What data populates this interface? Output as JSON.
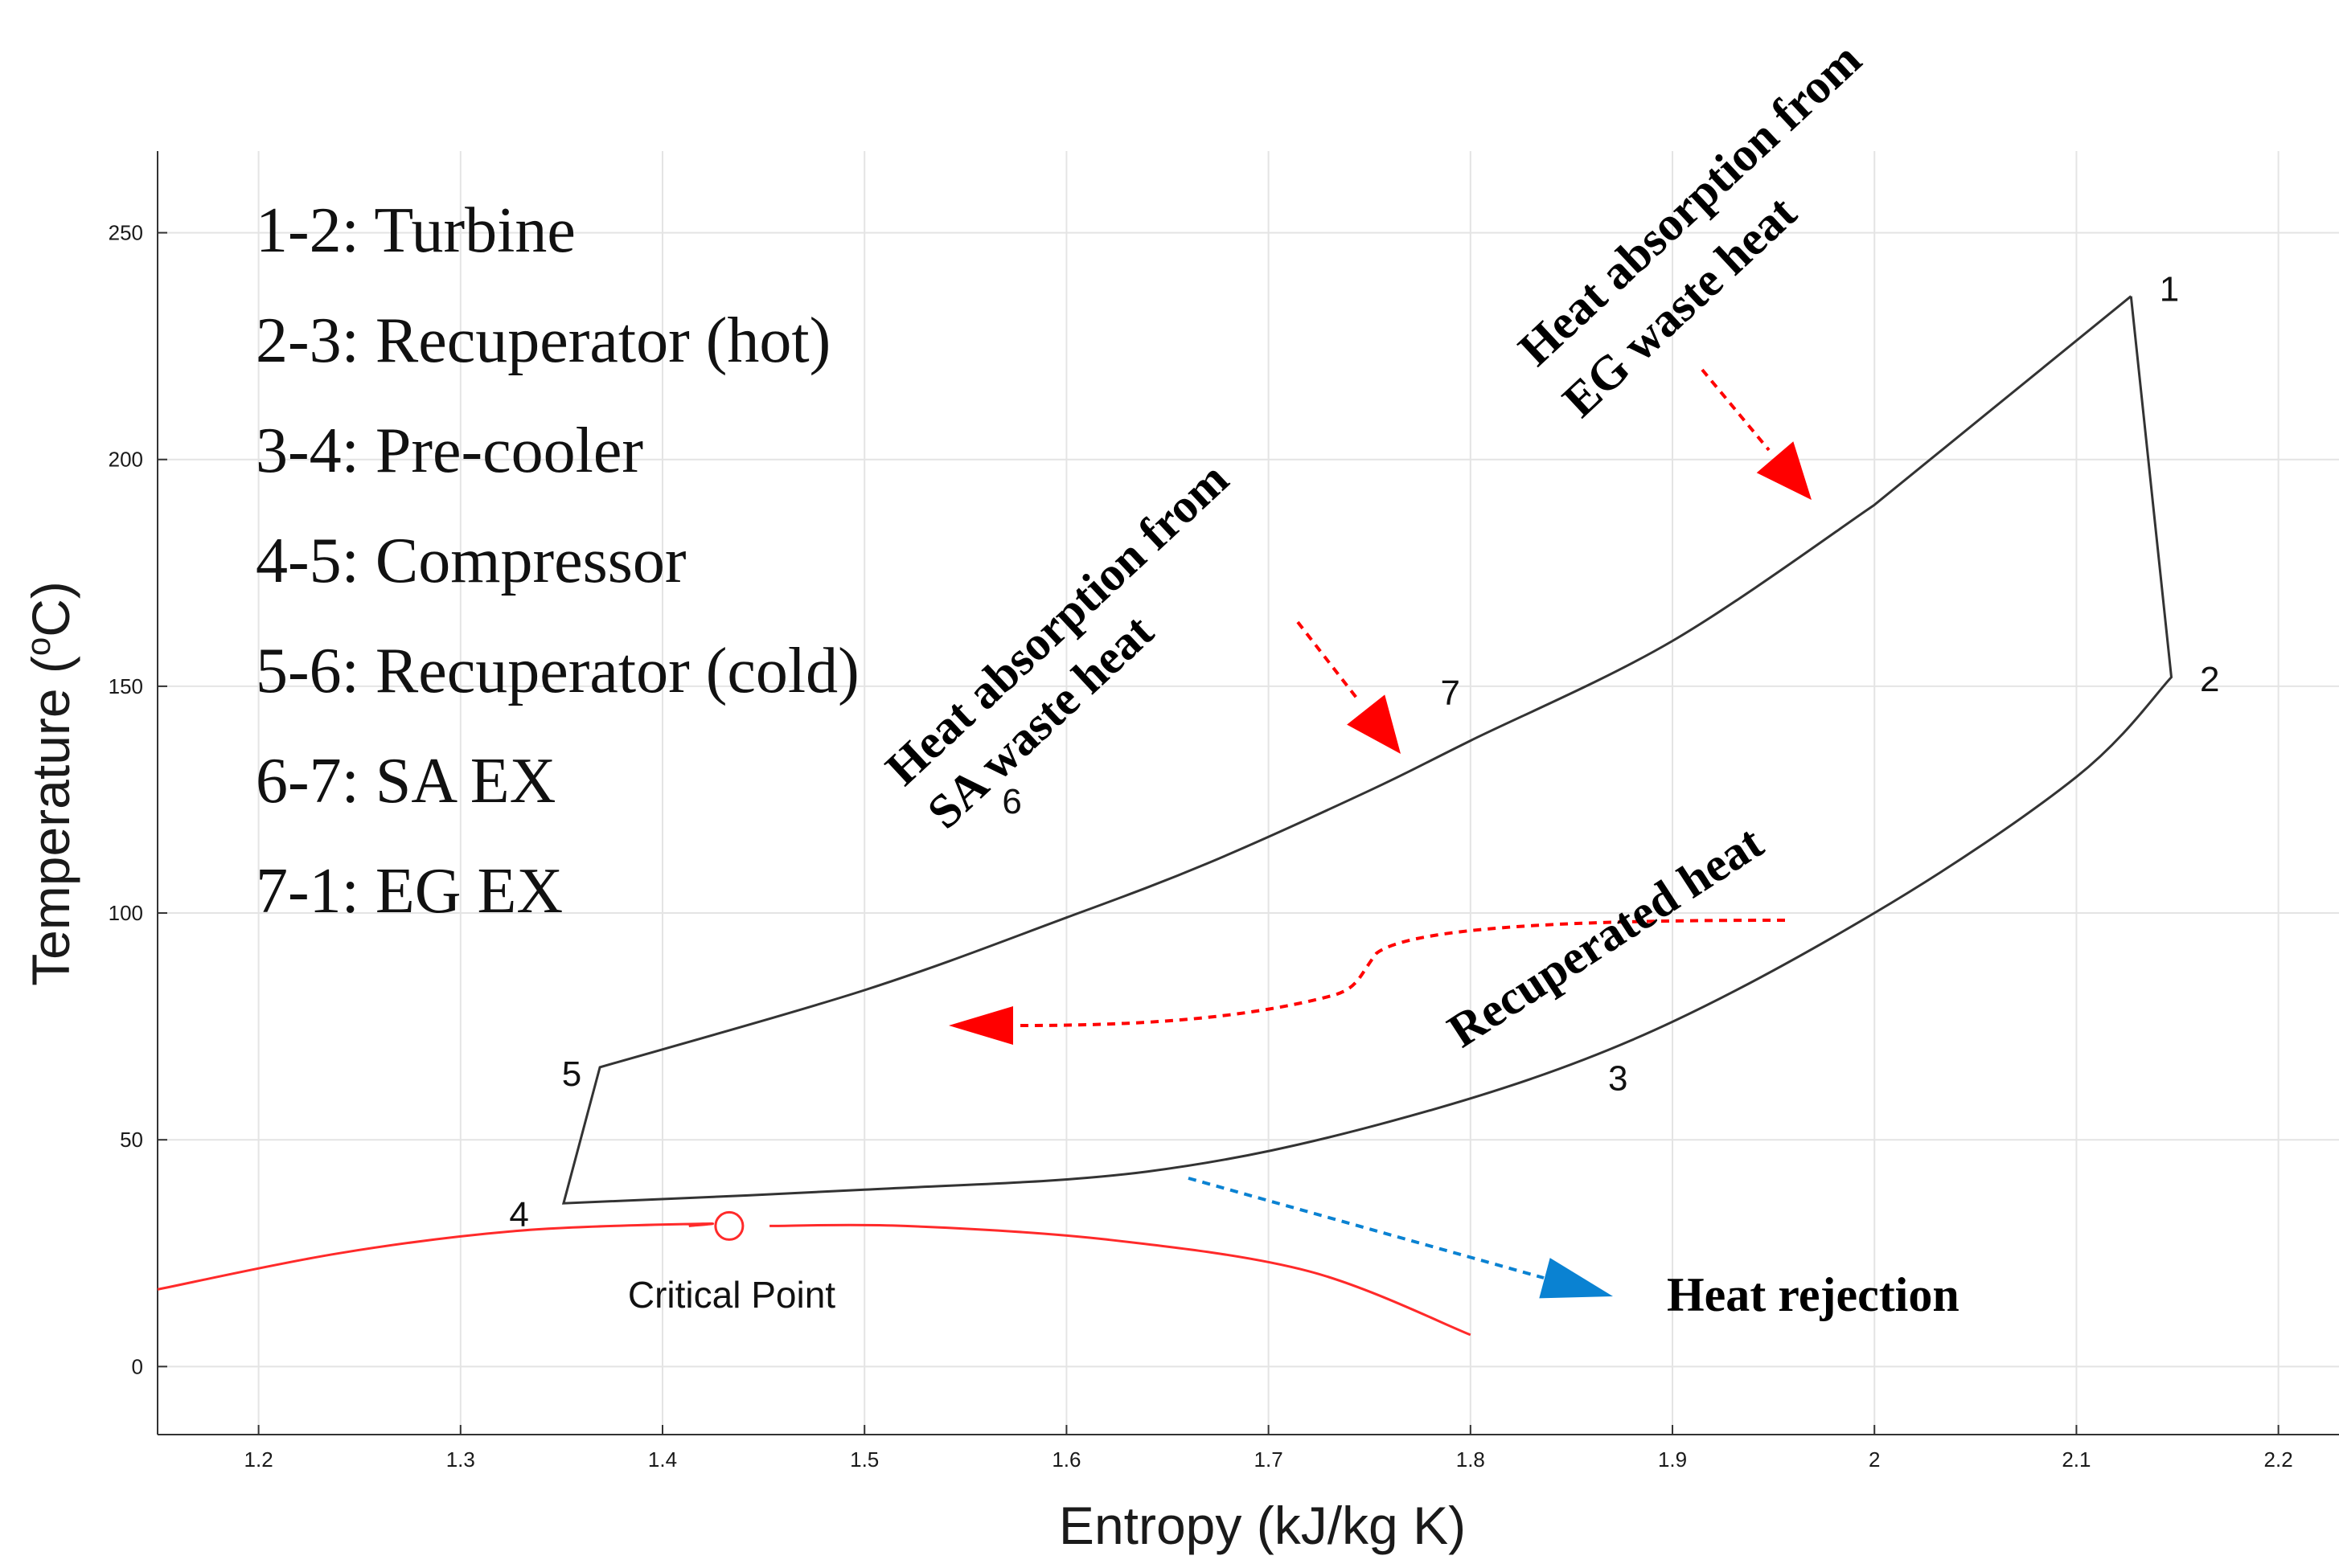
{
  "chart_data": {
    "type": "line",
    "title": "",
    "xlabel": "Entropy (kJ/kg K)",
    "ylabel": "Temperature (",
    "ylabel_sup": "o",
    "ylabel_suffix": "C)",
    "xlim": [
      1.15,
      2.23
    ],
    "ylim": [
      -15,
      268
    ],
    "x_ticks": [
      1.2,
      1.3,
      1.4,
      1.5,
      1.6,
      1.7,
      1.8,
      1.9,
      2.0,
      2.1,
      2.2
    ],
    "x_tick_labels": [
      "1.2",
      "1.3",
      "1.4",
      "1.5",
      "1.6",
      "1.7",
      "1.8",
      "1.9",
      "2",
      "2.1",
      "2.2"
    ],
    "y_ticks": [
      0,
      50,
      100,
      150,
      200,
      250
    ],
    "y_tick_labels": [
      "0",
      "50",
      "100",
      "150",
      "200",
      "250"
    ],
    "grid": true,
    "series": [
      {
        "role": "cycle",
        "color": "#333333",
        "points": [
          {
            "x": 2.127,
            "y": 236
          },
          {
            "x": 2.147,
            "y": 152
          },
          {
            "x": 2.1,
            "y": 130
          },
          {
            "x": 2.0,
            "y": 100
          },
          {
            "x": 1.88,
            "y": 72
          },
          {
            "x": 1.76,
            "y": 54
          },
          {
            "x": 1.64,
            "y": 43
          },
          {
            "x": 1.5,
            "y": 39
          },
          {
            "x": 1.351,
            "y": 36
          },
          {
            "x": 1.369,
            "y": 66
          },
          {
            "x": 1.5,
            "y": 83
          },
          {
            "x": 1.6,
            "y": 99
          },
          {
            "x": 1.67,
            "y": 111
          },
          {
            "x": 1.75,
            "y": 127
          },
          {
            "x": 1.8,
            "y": 138
          },
          {
            "x": 1.9,
            "y": 160
          },
          {
            "x": 2.0,
            "y": 190
          },
          {
            "x": 2.127,
            "y": 236
          }
        ]
      },
      {
        "role": "saturation-dome",
        "color": "#ff2a2a",
        "points": [
          {
            "x": 1.15,
            "y": 17
          },
          {
            "x": 1.24,
            "y": 25
          },
          {
            "x": 1.33,
            "y": 30
          },
          {
            "x": 1.42,
            "y": 31.5
          },
          {
            "x": 1.52,
            "y": 31
          },
          {
            "x": 1.62,
            "y": 28
          },
          {
            "x": 1.72,
            "y": 21
          },
          {
            "x": 1.8,
            "y": 7
          }
        ]
      }
    ],
    "critical_point": {
      "x": 1.433,
      "y": 31,
      "label": "Critical Point",
      "color": "#ff2a2a"
    },
    "state_points": [
      {
        "label": "1",
        "x": 2.146,
        "y": 237
      },
      {
        "label": "2",
        "x": 2.166,
        "y": 151
      },
      {
        "label": "3",
        "x": 1.873,
        "y": 63
      },
      {
        "label": "4",
        "x": 1.329,
        "y": 33
      },
      {
        "label": "5",
        "x": 1.355,
        "y": 64
      },
      {
        "label": "6",
        "x": 1.573,
        "y": 124
      },
      {
        "label": "7",
        "x": 1.79,
        "y": 148
      }
    ],
    "legend_lines": [
      "1-2: Turbine",
      "2-3: Recuperator (hot)",
      "3-4: Pre-cooler",
      "4-5: Compressor",
      "5-6: Recuperator (cold)",
      "6-7: SA EX",
      "7-1: EG EX"
    ],
    "annotations": [
      {
        "lines": [
          "Heat absorption from",
          "SA waste heat"
        ],
        "color": "#000000"
      },
      {
        "lines": [
          "Heat absorption from",
          "EG waste heat"
        ],
        "color": "#000000"
      },
      {
        "lines": [
          "Recuperated heat"
        ],
        "color": "#000000"
      },
      {
        "lines": [
          "Heat rejection"
        ],
        "color": "#000000"
      }
    ],
    "arrow_colors": {
      "red": "#ff0000",
      "blue": "#0a82d2"
    }
  }
}
